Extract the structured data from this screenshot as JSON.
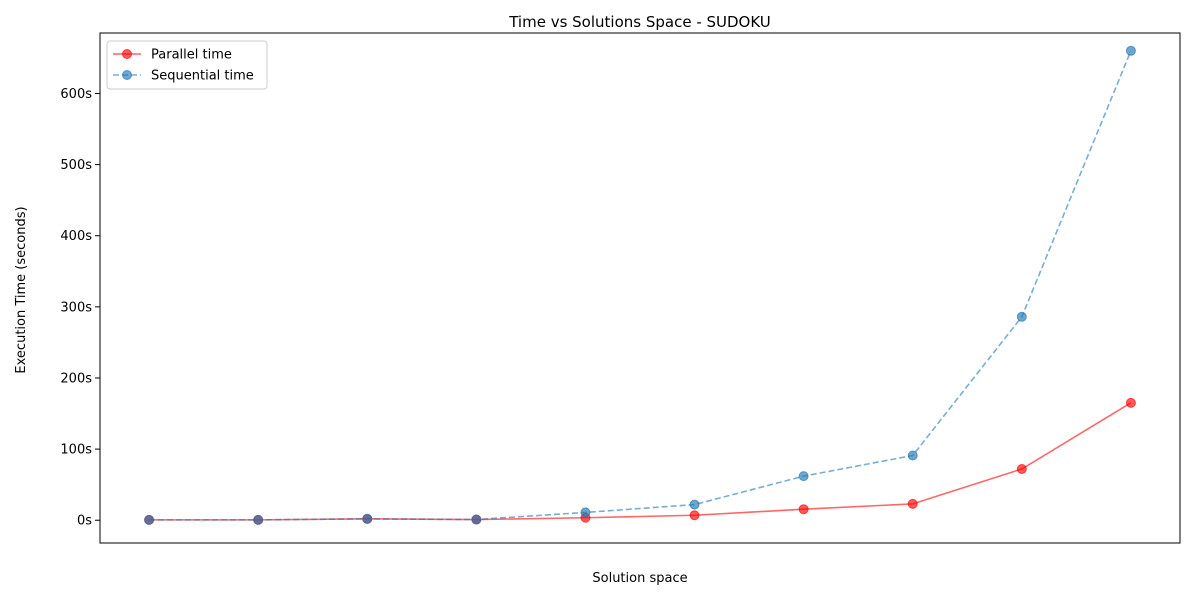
{
  "chart_data": {
    "type": "line",
    "title": "Time vs Solutions Space - SUDOKU",
    "xlabel": "Solution space",
    "ylabel": "Execution Time (seconds)",
    "x": [
      1,
      2,
      3,
      4,
      5,
      6,
      7,
      8,
      9,
      10
    ],
    "xlim": [
      0.55,
      10.45
    ],
    "ylim": [
      -32,
      685
    ],
    "y_ticks": [
      0,
      100,
      200,
      300,
      400,
      500,
      600
    ],
    "y_tick_labels": [
      "0s",
      "100s",
      "200s",
      "300s",
      "400s",
      "500s",
      "600s"
    ],
    "x_tick_labels": [],
    "grid": false,
    "legend_position": "top-left",
    "series": [
      {
        "name": "Parallel time",
        "color": "#ff0000",
        "style": "solid",
        "values": [
          0.5,
          0.5,
          2,
          1,
          3.5,
          7,
          15.5,
          23,
          72,
          165
        ]
      },
      {
        "name": "Sequential time",
        "color": "#1f77b4",
        "style": "dashed",
        "values": [
          0.5,
          0.5,
          2,
          1,
          11,
          22,
          62,
          91,
          286,
          660
        ]
      }
    ]
  }
}
